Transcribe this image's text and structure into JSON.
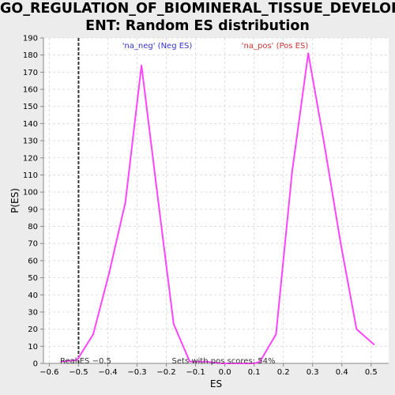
{
  "chart_data": {
    "type": "line",
    "title_line1": "GO_REGULATION_OF_BIOMINERAL_TISSUE_DEVELOPM",
    "title_line2": "ENT: Random ES distribution",
    "xlabel": "ES",
    "ylabel": "P(ES)",
    "xlim": [
      -0.62,
      0.56
    ],
    "ylim": [
      0,
      190
    ],
    "xticks": [
      -0.6,
      -0.5,
      -0.4,
      -0.3,
      -0.2,
      -0.1,
      0.0,
      0.1,
      0.2,
      0.3,
      0.4,
      0.5
    ],
    "xtick_labels": [
      "−0.6",
      "−0.5",
      "−0.4",
      "−0.3",
      "−0.2",
      "−0.1",
      "0.0",
      "0.1",
      "0.2",
      "0.3",
      "0.4",
      "0.5"
    ],
    "yticks": [
      0,
      10,
      20,
      30,
      40,
      50,
      60,
      70,
      80,
      90,
      100,
      110,
      120,
      130,
      140,
      150,
      160,
      170,
      180,
      190
    ],
    "grid": true,
    "series": [
      {
        "color": "#ff44ff",
        "x": [
          -0.56,
          -0.505,
          -0.45,
          -0.395,
          -0.34,
          -0.285,
          -0.23,
          -0.175,
          -0.12,
          -0.065,
          -0.01,
          0.045,
          0.1,
          0.12,
          0.175,
          0.23,
          0.285,
          0.34,
          0.395,
          0.45,
          0.51
        ],
        "y": [
          1,
          2,
          17,
          53,
          94,
          174,
          98,
          23,
          1,
          1,
          0,
          0,
          0,
          1,
          17,
          112,
          181,
          128,
          71,
          20,
          11
        ]
      }
    ],
    "real_es": -0.5,
    "annotations": {
      "neg_label": "'na_neg' (Neg ES)",
      "pos_label": "'na_pos' (Pos ES)",
      "real_es_label": "Real ES −0.5",
      "sets_label": "Sets with pos scores: 54%"
    },
    "colors": {
      "neg_label": "#3333cc",
      "pos_label": "#cc3333",
      "background": "#ffffff",
      "grid": "#dddddd"
    }
  }
}
